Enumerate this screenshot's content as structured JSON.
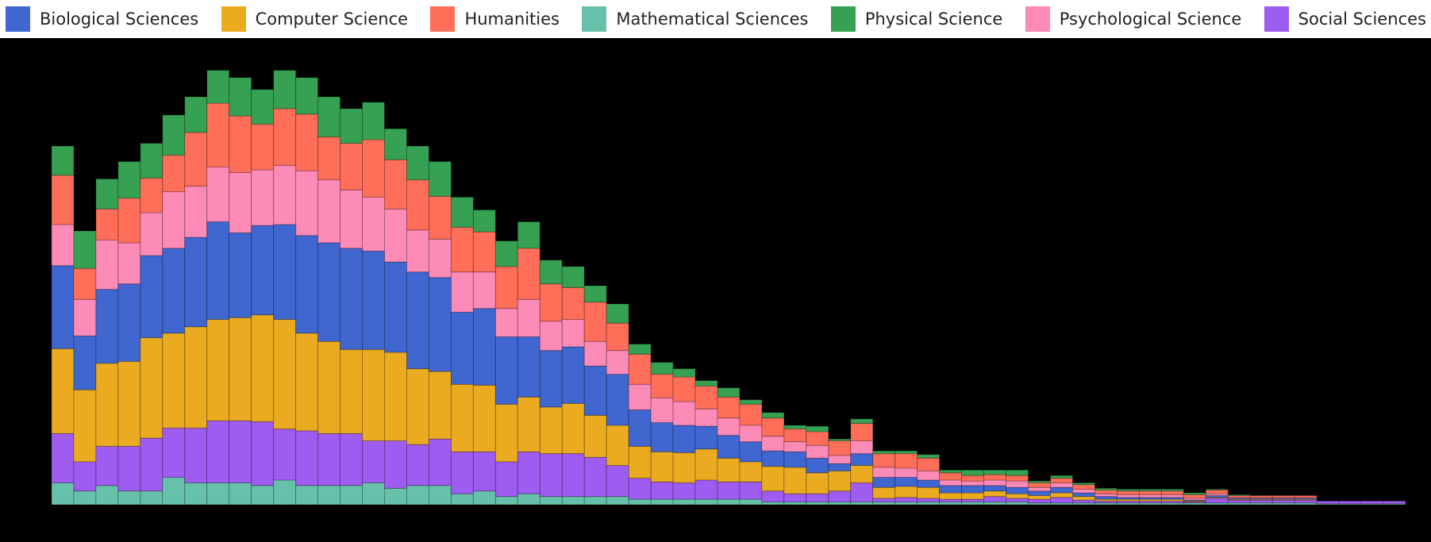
{
  "chart_data": {
    "type": "stacked_histogram",
    "categories": [
      null,
      null,
      null,
      null,
      null,
      null,
      null,
      null,
      null,
      null,
      null,
      null,
      null,
      null,
      null,
      null,
      null,
      null,
      null,
      null,
      null,
      null,
      null,
      null,
      null,
      null,
      null,
      null,
      null,
      null,
      null,
      null,
      null,
      null,
      null,
      null,
      null,
      null,
      null,
      null,
      null,
      null,
      null,
      null,
      null,
      null,
      null,
      null,
      null,
      null,
      null,
      null,
      null,
      null,
      null,
      null,
      null,
      null,
      null,
      null,
      null
    ],
    "ylim": [
      0,
      480
    ],
    "legend": "top",
    "stack_order": [
      3,
      6,
      1,
      0,
      5,
      2,
      4
    ],
    "series": [
      {
        "name": "Biological Sciences",
        "color": "#4066d0",
        "values": [
          91,
          59,
          81,
          85,
          90,
          93,
          98,
          107,
          93,
          98,
          104,
          107,
          108,
          111,
          108,
          99,
          106,
          103,
          79,
          84,
          74,
          66,
          62,
          62,
          54,
          56,
          40,
          32,
          30,
          25,
          25,
          22,
          17,
          17,
          16,
          8,
          13,
          11,
          10,
          8,
          8,
          8,
          6,
          7,
          5,
          6,
          4,
          3,
          2,
          2,
          2,
          1,
          2,
          1,
          1,
          1,
          1,
          0,
          0,
          0,
          0
        ]
      },
      {
        "name": "Computer Science",
        "color": "#ebab21",
        "values": [
          93,
          79,
          91,
          93,
          110,
          104,
          111,
          111,
          113,
          117,
          120,
          107,
          101,
          92,
          100,
          97,
          83,
          74,
          74,
          73,
          63,
          60,
          51,
          55,
          46,
          44,
          35,
          33,
          33,
          34,
          26,
          22,
          27,
          29,
          23,
          22,
          19,
          12,
          12,
          12,
          7,
          7,
          6,
          5,
          4,
          5,
          4,
          2,
          2,
          2,
          2,
          1,
          1,
          1,
          1,
          1,
          1,
          0,
          0,
          0,
          0
        ]
      },
      {
        "name": "Humanities",
        "color": "#fe6e58",
        "values": [
          54,
          34,
          34,
          49,
          38,
          40,
          59,
          70,
          62,
          50,
          62,
          62,
          47,
          51,
          63,
          54,
          55,
          47,
          49,
          44,
          46,
          56,
          41,
          35,
          43,
          30,
          33,
          26,
          27,
          25,
          23,
          23,
          20,
          14,
          15,
          16,
          19,
          15,
          16,
          14,
          8,
          6,
          6,
          6,
          5,
          5,
          5,
          4,
          4,
          4,
          4,
          4,
          4,
          2,
          2,
          2,
          2,
          0,
          0,
          0,
          0
        ]
      },
      {
        "name": "Mathematical Sciences",
        "color": "#67c1aa",
        "values": [
          24,
          15,
          21,
          15,
          15,
          30,
          24,
          24,
          24,
          21,
          27,
          21,
          21,
          21,
          24,
          18,
          21,
          21,
          12,
          15,
          9,
          12,
          9,
          9,
          9,
          9,
          6,
          6,
          6,
          6,
          6,
          6,
          3,
          3,
          3,
          3,
          3,
          3,
          3,
          3,
          3,
          3,
          3,
          3,
          2,
          2,
          2,
          2,
          2,
          2,
          2,
          2,
          2,
          2,
          2,
          2,
          2,
          1,
          1,
          1,
          1
        ]
      },
      {
        "name": "Physical Science",
        "color": "#36a152",
        "values": [
          32,
          41,
          33,
          40,
          38,
          44,
          39,
          36,
          42,
          38,
          42,
          40,
          44,
          38,
          41,
          34,
          37,
          38,
          33,
          24,
          28,
          29,
          26,
          23,
          18,
          21,
          11,
          13,
          9,
          6,
          10,
          5,
          6,
          4,
          6,
          2,
          5,
          3,
          3,
          4,
          3,
          6,
          5,
          6,
          2,
          3,
          2,
          2,
          2,
          2,
          2,
          2,
          1,
          1,
          0,
          0,
          0,
          0,
          0,
          0,
          0
        ]
      },
      {
        "name": "Psychological Science",
        "color": "#fd8bb8",
        "values": [
          45,
          40,
          54,
          45,
          47,
          62,
          56,
          60,
          66,
          61,
          65,
          71,
          69,
          64,
          59,
          58,
          46,
          42,
          44,
          40,
          31,
          41,
          32,
          30,
          27,
          26,
          28,
          27,
          26,
          19,
          19,
          18,
          16,
          11,
          14,
          9,
          14,
          11,
          10,
          10,
          6,
          5,
          6,
          7,
          4,
          5,
          4,
          3,
          3,
          3,
          3,
          2,
          2,
          1,
          1,
          1,
          1,
          0,
          0,
          0,
          0
        ]
      },
      {
        "name": "Social Sciences",
        "color": "#9f5cf0",
        "values": [
          54,
          32,
          43,
          49,
          58,
          54,
          60,
          68,
          68,
          70,
          56,
          60,
          57,
          57,
          46,
          52,
          45,
          51,
          46,
          43,
          38,
          46,
          47,
          47,
          43,
          34,
          23,
          19,
          18,
          21,
          19,
          19,
          12,
          9,
          9,
          12,
          21,
          4,
          5,
          4,
          3,
          3,
          6,
          4,
          4,
          6,
          3,
          2,
          2,
          2,
          2,
          1,
          5,
          3,
          3,
          3,
          3,
          3,
          3,
          3,
          3
        ]
      }
    ]
  }
}
